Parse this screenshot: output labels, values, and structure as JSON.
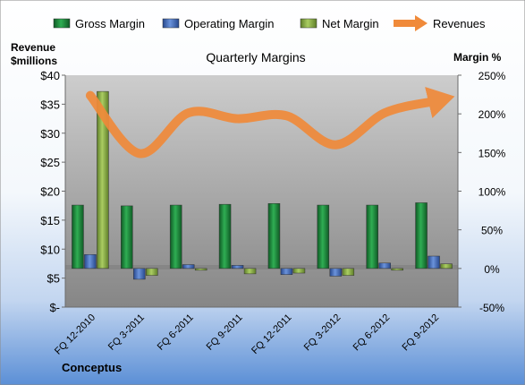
{
  "chart_data": {
    "type": "bar",
    "title": "Quarterly Margins",
    "company": "Conceptus",
    "left_axis_title_line1": "Revenue",
    "left_axis_title_line2": "$millions",
    "right_axis_title": "Margin %",
    "categories": [
      "FQ 12-2010",
      "FQ 3-2011",
      "FQ 6-2011",
      "FQ 9-2011",
      "FQ 12-2011",
      "FQ 3-2012",
      "FQ 6-2012",
      "FQ 9-2012"
    ],
    "left_axis": {
      "min": 0,
      "max": 40,
      "step": 5,
      "tick_labels": [
        "$-",
        "$5",
        "$10",
        "$15",
        "$20",
        "$25",
        "$30",
        "$35",
        "$40"
      ]
    },
    "right_axis": {
      "min": -50,
      "max": 250,
      "step": 50,
      "tick_labels": [
        "-50%",
        "0%",
        "50%",
        "100%",
        "150%",
        "200%",
        "250%"
      ]
    },
    "series": [
      {
        "name": "Gross Margin",
        "axis": "right",
        "kind": "bar",
        "color": "#1e8c3c",
        "values": [
          82,
          81,
          82,
          83,
          84,
          82,
          82,
          85
        ]
      },
      {
        "name": "Operating Margin",
        "axis": "right",
        "kind": "bar",
        "color": "#4a74c4",
        "values": [
          18,
          -14,
          5,
          4,
          -8,
          -10,
          7,
          16
        ]
      },
      {
        "name": "Net Margin",
        "axis": "right",
        "kind": "bar",
        "color": "#8fb64a",
        "values": [
          229,
          -9,
          0,
          -7,
          -6,
          -9,
          0,
          6
        ]
      },
      {
        "name": "Revenues",
        "axis": "left",
        "kind": "line",
        "color": "#f08a3a",
        "values": [
          36.5,
          26.5,
          33.5,
          32.5,
          33.0,
          28.0,
          33.5,
          35.5
        ]
      }
    ],
    "legend_position": "top",
    "grid": false,
    "colors": {
      "plot_top": "#c8c8c8",
      "plot_bottom": "#8a8a8a",
      "page_top": "#ffffff",
      "page_bottom": "#5b8fd6"
    }
  }
}
